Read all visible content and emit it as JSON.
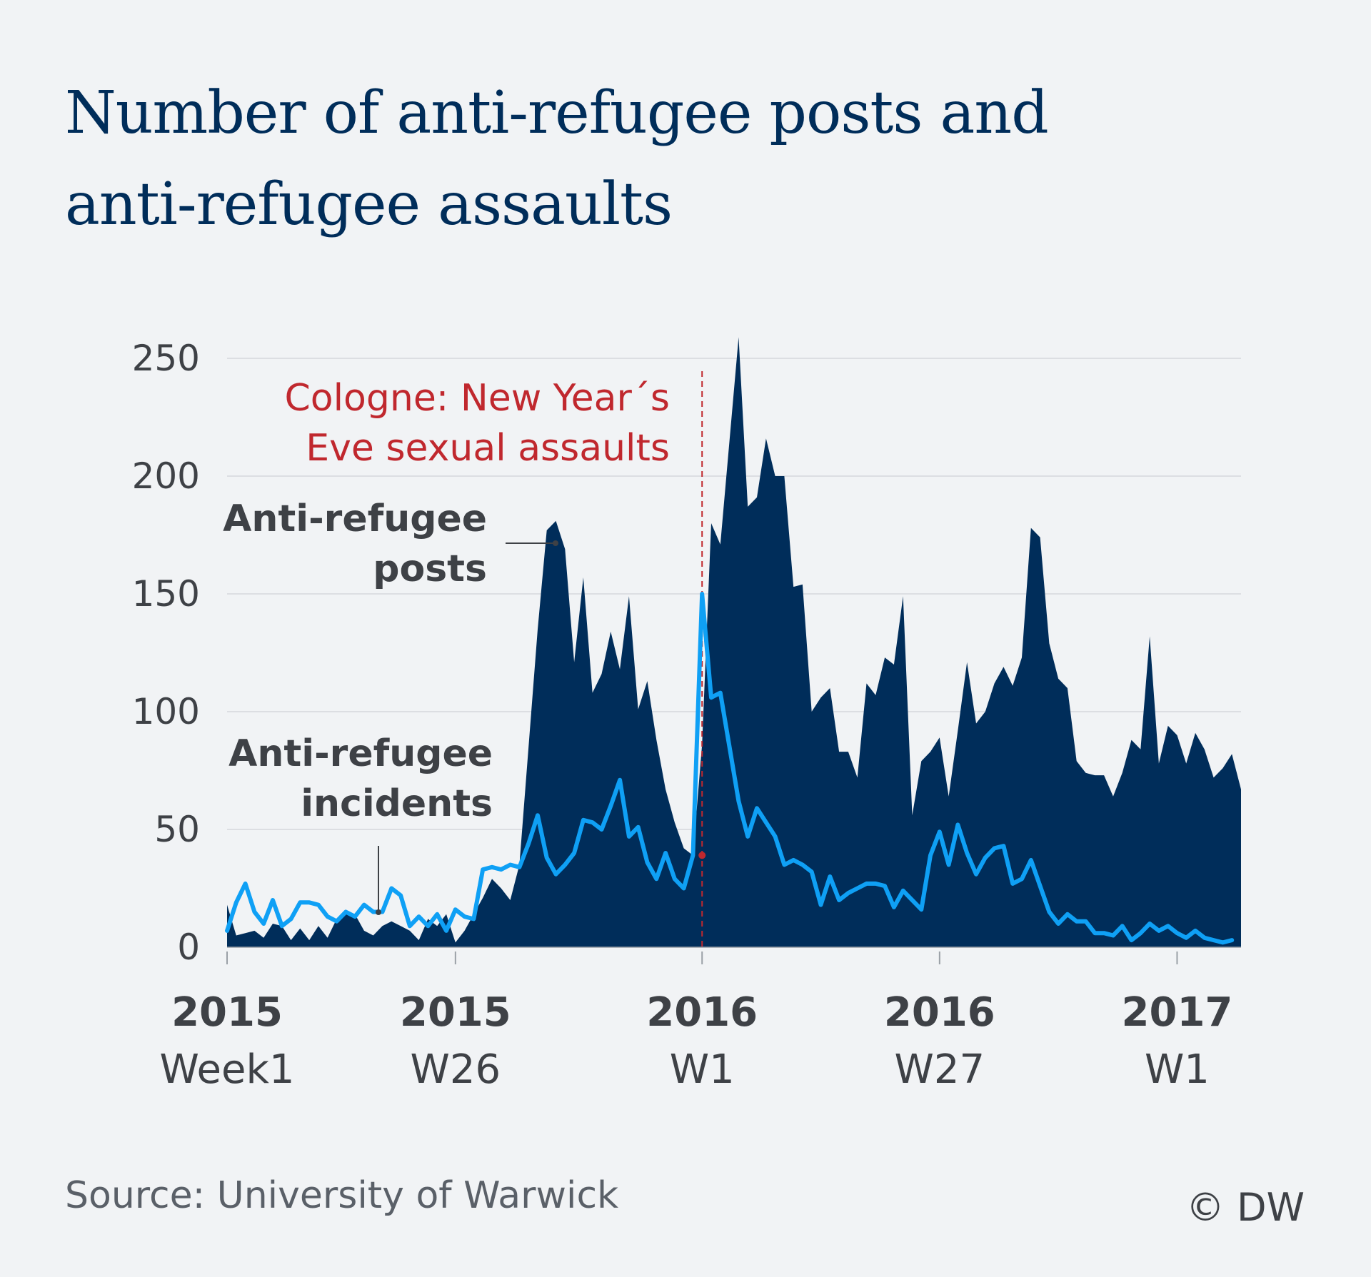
{
  "title": {
    "line1": "Number of anti-refugee posts and",
    "line2": "anti-refugee assaults"
  },
  "source": "Source: University of Warwick",
  "credit": "© DW",
  "colors": {
    "posts": "#002d5a",
    "incidents": "#0fa0f5",
    "annotation": "#c0282e",
    "grid": "#d5d8dc",
    "text": "#3e4146",
    "background": "#f1f3f5"
  },
  "chart_data": {
    "type": "area",
    "title": "Number of anti-refugee posts and anti-refugee assaults",
    "ylim": [
      0,
      260
    ],
    "yticks": [
      0,
      50,
      100,
      150,
      200,
      250
    ],
    "grid": true,
    "xticks": [
      {
        "year": "2015",
        "week": "Week1",
        "x": 1
      },
      {
        "year": "2015",
        "week": "W26",
        "x": 26
      },
      {
        "year": "2016",
        "week": "W1",
        "x": 53
      },
      {
        "year": "2016",
        "week": "W27",
        "x": 79
      },
      {
        "year": "2017",
        "week": "W1",
        "x": 105
      }
    ],
    "series_labels": {
      "posts": [
        "Anti-refugee",
        "posts"
      ],
      "incidents": [
        "Anti-refugee",
        "incidents"
      ]
    },
    "event": {
      "x": 53,
      "value": 39,
      "label": [
        "Cologne: New Year´s",
        "Eve sexual assaults"
      ]
    },
    "series": [
      {
        "name": "Anti-refugee posts",
        "type": "area",
        "values": [
          18,
          5,
          6,
          7,
          4,
          10,
          9,
          3,
          8,
          3,
          9,
          4,
          12,
          15,
          14,
          7,
          5,
          9,
          11,
          9,
          7,
          3,
          12,
          9,
          14,
          2,
          7,
          14,
          21,
          29,
          25,
          20,
          35,
          85,
          135,
          177,
          181,
          169,
          121,
          157,
          108,
          116,
          134,
          118,
          149,
          101,
          113,
          88,
          67,
          53,
          42,
          39,
          86,
          180,
          171,
          215,
          259,
          187,
          191,
          216,
          200,
          200,
          153,
          154,
          100,
          106,
          110,
          83,
          83,
          72,
          112,
          107,
          123,
          120,
          149,
          56,
          79,
          83,
          89,
          64,
          92,
          121,
          95,
          100,
          112,
          119,
          111,
          123,
          178,
          174,
          129,
          114,
          110,
          79,
          74,
          73,
          73,
          64,
          74,
          88,
          84,
          132,
          78,
          94,
          90,
          78,
          91,
          84,
          72,
          76,
          82,
          67
        ]
      },
      {
        "name": "Anti-refugee incidents",
        "type": "line",
        "values": [
          7,
          19,
          27,
          15,
          10,
          20,
          9,
          12,
          19,
          19,
          18,
          13,
          11,
          15,
          13,
          18,
          15,
          15,
          25,
          22,
          9,
          13,
          9,
          14,
          7,
          16,
          13,
          12,
          33,
          34,
          33,
          35,
          34,
          44,
          56,
          38,
          31,
          35,
          40,
          54,
          53,
          50,
          60,
          71,
          47,
          51,
          36,
          29,
          40,
          29,
          25,
          39,
          150,
          106,
          108,
          85,
          62,
          47,
          59,
          53,
          47,
          35,
          37,
          35,
          32,
          18,
          30,
          20,
          23,
          25,
          27,
          27,
          26,
          17,
          24,
          20,
          16,
          39,
          49,
          35,
          52,
          40,
          31,
          38,
          42,
          43,
          27,
          29,
          37,
          26,
          15,
          10,
          14,
          11,
          11,
          6,
          6,
          5,
          9,
          3,
          6,
          10,
          7,
          9,
          6,
          4,
          7,
          4,
          3,
          2,
          3
        ]
      }
    ]
  }
}
